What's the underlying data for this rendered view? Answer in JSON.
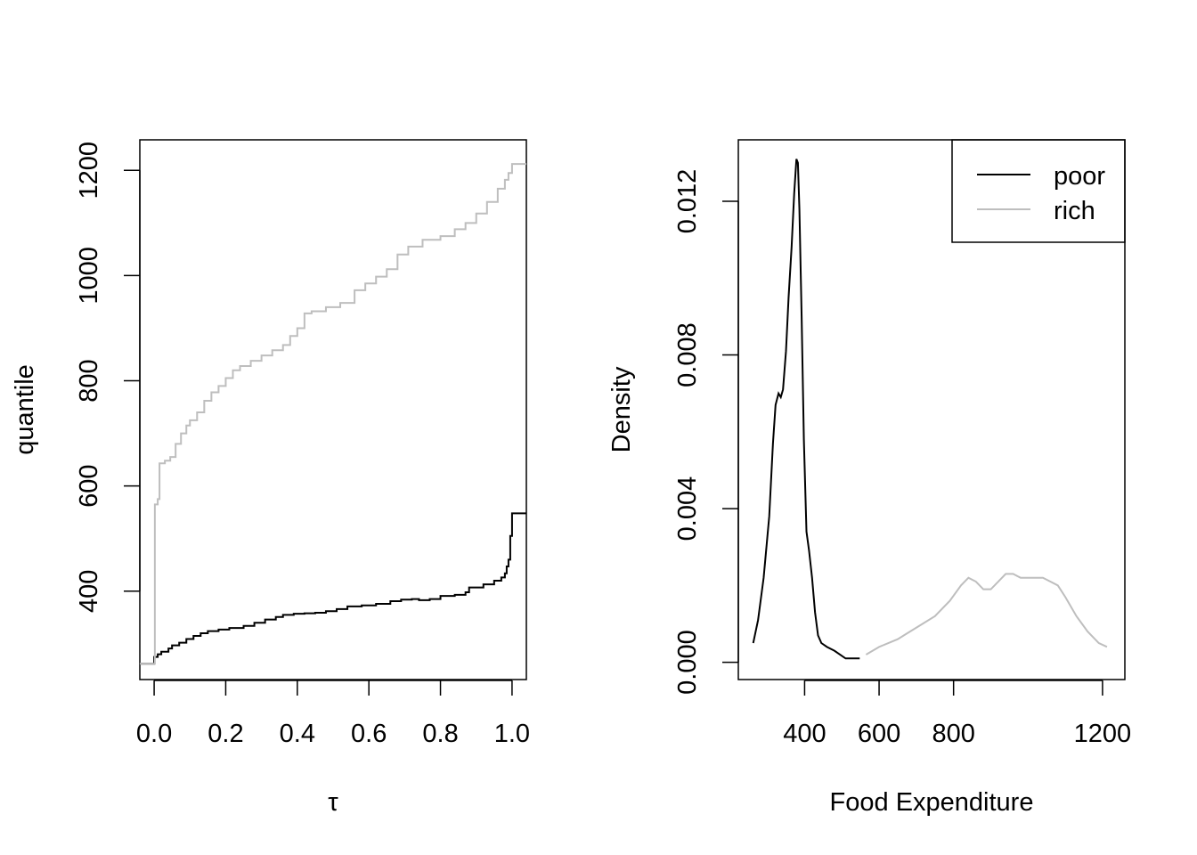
{
  "chart_data": [
    {
      "type": "line",
      "xlabel": "τ",
      "ylabel": "quantile",
      "xlim": [
        -0.04,
        1.04
      ],
      "ylim": [
        232,
        1258
      ],
      "x_ticks": [
        "0.0",
        "0.2",
        "0.4",
        "0.6",
        "0.8",
        "1.0"
      ],
      "y_ticks": [
        "400",
        "600",
        "800",
        "1000",
        "1200"
      ],
      "grid": false,
      "step": true,
      "series": [
        {
          "color": "#000000",
          "x": [
            -0.04,
            0.0,
            0.0,
            0.01,
            0.02,
            0.04,
            0.05,
            0.07,
            0.09,
            0.11,
            0.13,
            0.15,
            0.18,
            0.21,
            0.25,
            0.28,
            0.31,
            0.34,
            0.36,
            0.39,
            0.42,
            0.45,
            0.48,
            0.51,
            0.54,
            0.58,
            0.62,
            0.66,
            0.69,
            0.72,
            0.74,
            0.77,
            0.8,
            0.84,
            0.87,
            0.88,
            0.92,
            0.95,
            0.97,
            0.98,
            0.985,
            0.99,
            0.995,
            1.0,
            1.04
          ],
          "y": [
            262,
            262,
            275,
            280,
            285,
            291,
            297,
            302,
            309,
            315,
            320,
            324,
            327,
            330,
            334,
            340,
            346,
            351,
            355,
            357,
            358,
            359,
            362,
            366,
            371,
            373,
            376,
            381,
            384,
            385,
            383,
            385,
            391,
            393,
            398,
            407,
            413,
            420,
            426,
            434,
            447,
            460,
            505,
            548,
            548
          ]
        },
        {
          "color": "#bebebe",
          "x": [
            -0.04,
            0.0,
            0.002,
            0.01,
            0.015,
            0.03,
            0.045,
            0.06,
            0.075,
            0.09,
            0.1,
            0.12,
            0.14,
            0.16,
            0.18,
            0.2,
            0.22,
            0.24,
            0.27,
            0.3,
            0.33,
            0.36,
            0.38,
            0.4,
            0.42,
            0.44,
            0.48,
            0.52,
            0.56,
            0.59,
            0.62,
            0.65,
            0.68,
            0.71,
            0.75,
            0.8,
            0.84,
            0.87,
            0.9,
            0.93,
            0.96,
            0.98,
            0.99,
            1.0,
            1.04
          ],
          "y": [
            262,
            262,
            565,
            575,
            643,
            648,
            655,
            680,
            700,
            715,
            725,
            740,
            762,
            778,
            790,
            805,
            820,
            828,
            838,
            848,
            858,
            868,
            885,
            900,
            928,
            932,
            940,
            948,
            972,
            985,
            998,
            1012,
            1040,
            1055,
            1068,
            1075,
            1088,
            1100,
            1118,
            1140,
            1165,
            1182,
            1195,
            1212,
            1212
          ]
        }
      ]
    },
    {
      "type": "line",
      "xlabel": "Food Expenditure",
      "ylabel": "Density",
      "xlim": [
        222,
        1260
      ],
      "ylim": [
        -0.00045,
        0.0136
      ],
      "x_ticks": [
        "400",
        "600",
        "800",
        "1200"
      ],
      "y_ticks": [
        "0.000",
        "0.004",
        "0.008",
        "0.012"
      ],
      "grid": false,
      "legend": {
        "position": "top-right",
        "entries": [
          "poor",
          "rich"
        ]
      },
      "series": [
        {
          "name": "poor",
          "color": "#000000",
          "x": [
            262,
            275,
            290,
            305,
            315,
            322,
            330,
            336,
            342,
            350,
            357,
            365,
            372,
            378,
            382,
            386,
            392,
            398,
            405,
            412,
            420,
            428,
            436,
            445,
            460,
            480,
            510,
            548
          ],
          "y": [
            0.0005,
            0.0011,
            0.0022,
            0.0038,
            0.0057,
            0.0067,
            0.007,
            0.0069,
            0.0071,
            0.0081,
            0.0095,
            0.0108,
            0.0122,
            0.0131,
            0.013,
            0.0118,
            0.009,
            0.0058,
            0.0034,
            0.0029,
            0.0022,
            0.0013,
            0.0007,
            0.0005,
            0.0004,
            0.0003,
            0.0001,
            0.0001
          ]
        },
        {
          "name": "rich",
          "color": "#bebebe",
          "x": [
            565,
            600,
            650,
            700,
            750,
            790,
            820,
            840,
            860,
            880,
            900,
            920,
            940,
            960,
            980,
            1000,
            1020,
            1040,
            1060,
            1080,
            1100,
            1130,
            1160,
            1190,
            1212
          ],
          "y": [
            0.0002,
            0.0004,
            0.0006,
            0.0009,
            0.0012,
            0.0016,
            0.002,
            0.0022,
            0.0021,
            0.0019,
            0.0019,
            0.0021,
            0.0023,
            0.0023,
            0.0022,
            0.0022,
            0.0022,
            0.0022,
            0.0021,
            0.002,
            0.0017,
            0.0012,
            0.0008,
            0.0005,
            0.0004
          ]
        }
      ]
    }
  ]
}
